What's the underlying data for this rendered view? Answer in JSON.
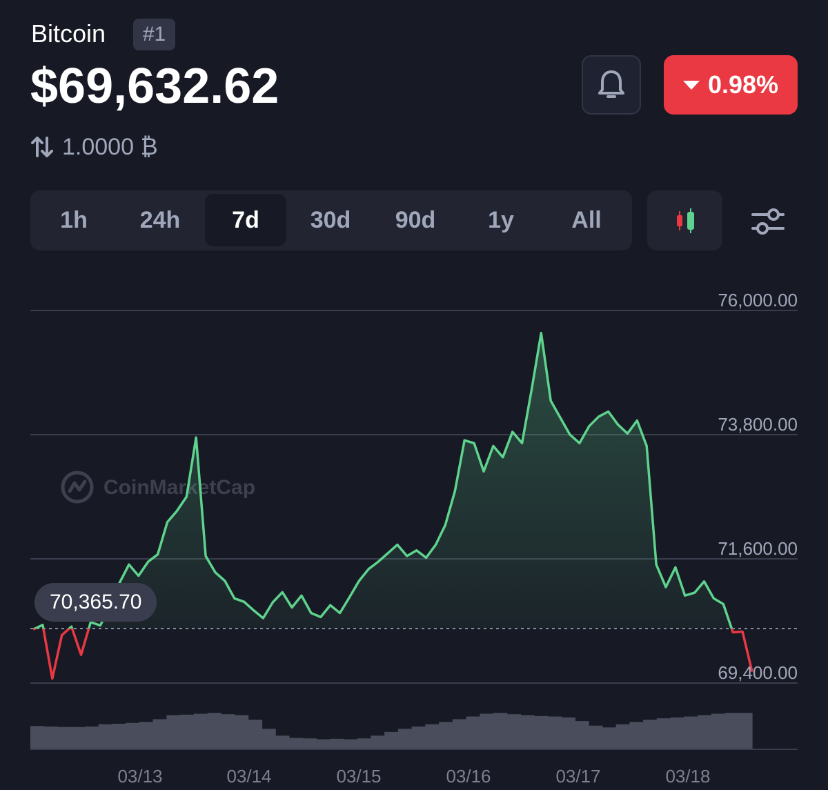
{
  "coin": {
    "name": "Bitcoin",
    "rank": "#1"
  },
  "price": "$69,632.62",
  "change": {
    "value": "0.98%",
    "direction": "down",
    "color": "#ea3943"
  },
  "conversion": {
    "amount": "1.0000 ₿",
    "icon": "swap-arrows-icon"
  },
  "range_tabs": [
    {
      "label": "1h",
      "active": false
    },
    {
      "label": "24h",
      "active": false
    },
    {
      "label": "7d",
      "active": true
    },
    {
      "label": "30d",
      "active": false
    },
    {
      "label": "90d",
      "active": false
    },
    {
      "label": "1y",
      "active": false
    },
    {
      "label": "All",
      "active": false
    }
  ],
  "toolbar": {
    "bell_icon": "bell-icon",
    "candlestick_icon": "candlestick-icon",
    "settings_icon": "sliders-icon"
  },
  "watermark": "CoinMarketCap",
  "tooltip_value": "70,365.70",
  "colors": {
    "up": "#5fd38d",
    "down": "#ea3943",
    "background": "#171924",
    "grid": "#3a3d4d",
    "volume": "#4a4d5c"
  },
  "chart_data": {
    "type": "line",
    "title": "",
    "xlabel": "",
    "ylabel": "",
    "x_ticks": [
      "03/13",
      "03/14",
      "03/15",
      "03/16",
      "03/17",
      "03/18"
    ],
    "y_ticks": [
      "76,000.00",
      "73,800.00",
      "71,600.00",
      "69,400.00"
    ],
    "ylim": [
      69400,
      76000
    ],
    "baseline": 70365.7,
    "grid": true,
    "series": [
      {
        "x": [
          0,
          0.1,
          0.2,
          0.3,
          0.4,
          0.5,
          0.6,
          0.7,
          0.8,
          0.9,
          1.0,
          1.1,
          1.2,
          1.3,
          1.4,
          1.5,
          1.6,
          1.7,
          1.8,
          1.9,
          2.0,
          2.1,
          2.2,
          2.3,
          2.4,
          2.5,
          2.6,
          2.7,
          2.8,
          2.9,
          3.0,
          3.1,
          3.2,
          3.3,
          3.4,
          3.5,
          3.6,
          3.7,
          3.8,
          3.9,
          4.0,
          4.1,
          4.2,
          4.3,
          4.4,
          4.5,
          4.6,
          4.7,
          4.8,
          4.9,
          5.0,
          5.1,
          5.2,
          5.3,
          5.4,
          5.5,
          5.6,
          5.7,
          5.8,
          5.9,
          6.0,
          6.1,
          6.2,
          6.3,
          6.4,
          6.5,
          6.6,
          6.7,
          6.8,
          6.9,
          7.0,
          7.1,
          7.2,
          7.3,
          7.4,
          7.5
        ],
        "values": [
          70350,
          70430,
          69480,
          70250,
          70400,
          69900,
          70480,
          70420,
          70750,
          71170,
          71500,
          71300,
          71550,
          71680,
          72250,
          72450,
          72700,
          73750,
          71650,
          71360,
          71210,
          70900,
          70840,
          70690,
          70550,
          70830,
          71010,
          70740,
          70950,
          70640,
          70570,
          70780,
          70640,
          70920,
          71210,
          71420,
          71550,
          71700,
          71850,
          71650,
          71750,
          71620,
          71850,
          72200,
          72800,
          73700,
          73650,
          73150,
          73600,
          73400,
          73850,
          73650,
          74600,
          75600,
          74400,
          74100,
          73800,
          73650,
          73950,
          74120,
          74210,
          73980,
          73820,
          74050,
          73600,
          71500,
          71100,
          71450,
          70950,
          71000,
          71200,
          70900,
          70800,
          70300,
          70310,
          69600
        ]
      }
    ],
    "volume": [
      0.51,
      0.5,
      0.49,
      0.49,
      0.5,
      0.55,
      0.56,
      0.58,
      0.6,
      0.66,
      0.75,
      0.76,
      0.78,
      0.8,
      0.77,
      0.75,
      0.65,
      0.45,
      0.3,
      0.25,
      0.24,
      0.22,
      0.23,
      0.22,
      0.24,
      0.3,
      0.38,
      0.45,
      0.5,
      0.55,
      0.6,
      0.66,
      0.72,
      0.78,
      0.8,
      0.77,
      0.75,
      0.73,
      0.72,
      0.7,
      0.62,
      0.52,
      0.48,
      0.55,
      0.6,
      0.65,
      0.68,
      0.7,
      0.72,
      0.75,
      0.78,
      0.8,
      0.8
    ]
  }
}
